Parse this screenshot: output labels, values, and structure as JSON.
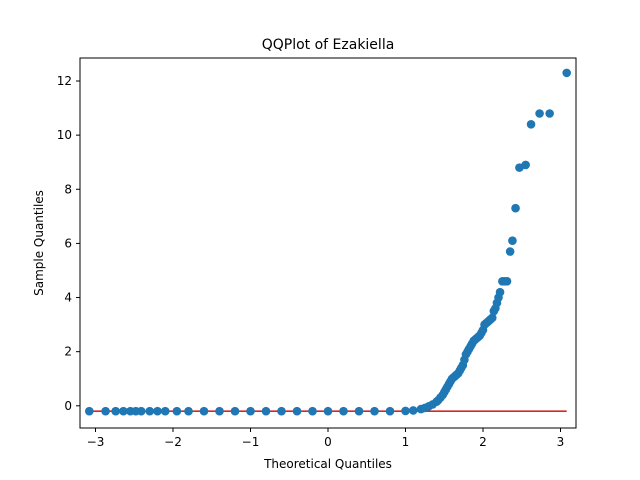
{
  "chart_data": {
    "type": "scatter",
    "title": "QQPlot of Ezakiella",
    "xlabel": "Theoretical Quantiles",
    "ylabel": "Sample Quantiles",
    "xlim": [
      -3.2,
      3.2
    ],
    "ylim": [
      -0.82,
      12.85
    ],
    "xticks": [
      -3,
      -2,
      -1,
      0,
      1,
      2,
      3
    ],
    "yticks": [
      0,
      2,
      4,
      6,
      8,
      10,
      12
    ],
    "grid": false,
    "legend": "none",
    "colors": {
      "points": "#1f77b4",
      "reference_line": "#d62728"
    },
    "reference_line": {
      "x": [
        -3.08,
        3.08
      ],
      "y": [
        -0.2,
        -0.2
      ]
    },
    "points": {
      "x": [
        -3.08,
        -2.87,
        -2.74,
        -2.64,
        -2.55,
        -2.48,
        -2.41,
        -2.3,
        -2.2,
        -2.1,
        -1.95,
        -1.8,
        -1.6,
        -1.4,
        -1.2,
        -1.0,
        -0.8,
        -0.6,
        -0.4,
        -0.2,
        0.0,
        0.2,
        0.4,
        0.6,
        0.8,
        1.0,
        1.1,
        1.2,
        1.25,
        1.3,
        1.35,
        1.4,
        1.42,
        1.45,
        1.48,
        1.5,
        1.52,
        1.54,
        1.56,
        1.58,
        1.6,
        1.62,
        1.64,
        1.66,
        1.68,
        1.7,
        1.72,
        1.74,
        1.76,
        1.78,
        1.8,
        1.82,
        1.84,
        1.86,
        1.88,
        1.9,
        1.92,
        1.94,
        1.96,
        1.98,
        2.0,
        2.02,
        2.04,
        2.06,
        2.08,
        2.1,
        2.12,
        2.14,
        2.16,
        2.18,
        2.2,
        2.22,
        2.25,
        2.28,
        2.31,
        2.35,
        2.38,
        2.42,
        2.47,
        2.55,
        2.62,
        2.73,
        2.86,
        3.08
      ],
      "y": [
        -0.2,
        -0.2,
        -0.2,
        -0.2,
        -0.2,
        -0.2,
        -0.2,
        -0.2,
        -0.2,
        -0.2,
        -0.2,
        -0.2,
        -0.2,
        -0.2,
        -0.2,
        -0.2,
        -0.2,
        -0.2,
        -0.2,
        -0.2,
        -0.2,
        -0.2,
        -0.2,
        -0.2,
        -0.2,
        -0.19,
        -0.17,
        -0.12,
        -0.08,
        -0.02,
        0.05,
        0.15,
        0.2,
        0.3,
        0.4,
        0.5,
        0.6,
        0.7,
        0.8,
        0.9,
        1.0,
        1.05,
        1.1,
        1.15,
        1.2,
        1.3,
        1.4,
        1.5,
        1.7,
        1.9,
        2.0,
        2.1,
        2.2,
        2.3,
        2.4,
        2.45,
        2.5,
        2.55,
        2.6,
        2.7,
        2.8,
        3.0,
        3.05,
        3.1,
        3.15,
        3.2,
        3.25,
        3.5,
        3.6,
        3.8,
        4.0,
        4.2,
        4.6,
        4.6,
        4.6,
        5.7,
        6.1,
        7.3,
        8.8,
        8.9,
        10.4,
        10.8,
        10.8,
        12.3
      ]
    }
  }
}
